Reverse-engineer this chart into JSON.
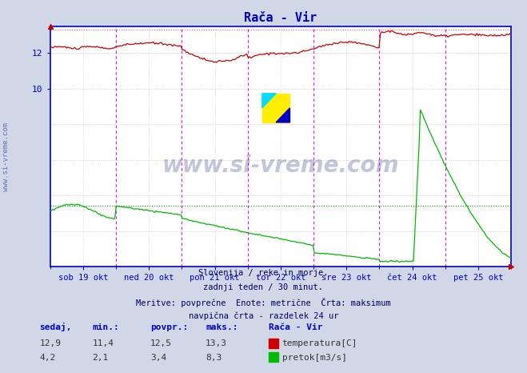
{
  "title": "Rača - Vir",
  "title_color": "#0000cc",
  "background_color": "#d0d8e8",
  "plot_bg_color": "#ffffff",
  "x_labels": [
    "sob 19 okt",
    "ned 20 okt",
    "pon 21 okt",
    "tor 22 okt",
    "sre 23 okt",
    "čet 24 okt",
    "pet 25 okt"
  ],
  "num_points": 336,
  "temp_color": "#cc0000",
  "flow_color": "#00bb00",
  "temp_max_line_color": "#ff4444",
  "flow_avg_line_color": "#00aa00",
  "vline_color": "#ff00ff",
  "hgrid_color": "#cccccc",
  "vgrid_color": "#cccccc",
  "axis_color": "#0000cc",
  "ylim": [
    0,
    13.5
  ],
  "y_tick_positions": [
    10,
    12
  ],
  "temp_max": 13.3,
  "flow_avg": 3.4,
  "subtitle_lines": [
    "Slovenija / reke in morje.",
    "zadnji teden / 30 minut.",
    "Meritve: povprečne  Enote: metrične  Črta: maksimum",
    "navpična črta - razdelek 24 ur"
  ],
  "legend_title": "Rača - Vir",
  "legend_items": [
    {
      "label": "temperatura[C]",
      "color": "#cc0000"
    },
    {
      "label": "pretok[m3/s]",
      "color": "#00bb00"
    }
  ],
  "stats": {
    "headers": [
      "sedaj",
      "min.:",
      "povpr.:",
      "maks.:"
    ],
    "temp": [
      12.9,
      11.4,
      12.5,
      13.3
    ],
    "flow": [
      4.2,
      2.1,
      3.4,
      8.3
    ]
  },
  "watermark": "www.si-vreme.com",
  "side_label": "www.si-vreme.com"
}
